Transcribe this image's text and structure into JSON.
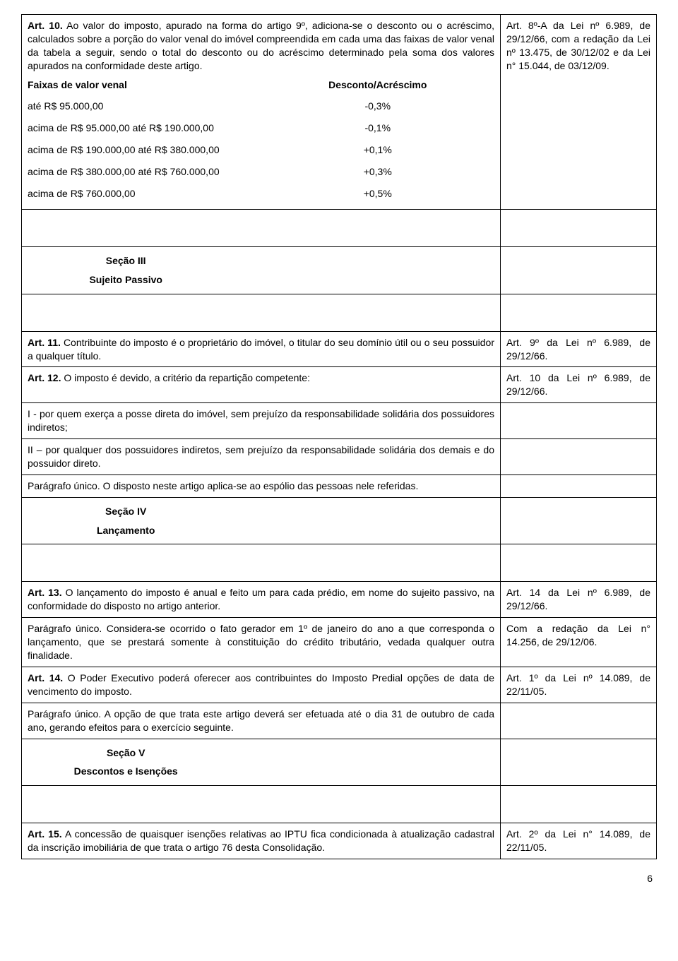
{
  "art10": {
    "head": "Art. 10.",
    "body": " Ao valor do imposto, apurado na forma do artigo 9º, adiciona-se o desconto ou o acréscimo, calculados sobre a porção do valor venal do imóvel compreendida em cada uma das faixas de valor venal da tabela a seguir, sendo o total do desconto ou do acréscimo determinado pela soma dos valores apurados na conformidade deste artigo.",
    "sideref": "Art. 8º-A da Lei nº 6.989, de 29/12/66, com a redação da Lei nº 13.475, de 30/12/02 e da Lei n° 15.044, de 03/12/09.",
    "faixa_head1": "Faixas de valor venal",
    "faixa_head2": "Desconto/Acréscimo",
    "rows": [
      {
        "a": "até R$ 95.000,00",
        "b": "-0,3%"
      },
      {
        "a": "acima de R$   95.000,00 até R$ 190.000,00",
        "b": "-0,1%"
      },
      {
        "a": "acima de R$ 190.000,00 até R$ 380.000,00",
        "b": "+0,1%"
      },
      {
        "a": "acima de R$ 380.000,00 até R$ 760.000,00",
        "b": "+0,3%"
      },
      {
        "a": "acima de R$ 760.000,00",
        "b": "+0,5%"
      }
    ]
  },
  "sec3": {
    "title1": "Seção III",
    "title2": "Sujeito Passivo"
  },
  "art11": {
    "head": "Art. 11.",
    "body": " Contribuinte do imposto é o proprietário do imóvel, o titular do seu domínio útil ou o seu possuidor a qualquer título.",
    "sideref": "Art. 9º da Lei nº 6.989, de 29/12/66."
  },
  "art12": {
    "head": "Art. 12.",
    "body": " O imposto é devido, a critério da repartição competente:",
    "i": "I - por quem exerça a posse direta do imóvel, sem prejuízo da responsabilidade solidária dos possuidores indiretos;",
    "ii": "II – por qualquer dos possuidores indiretos, sem prejuízo da responsabilidade solidária dos demais e do possuidor direto.",
    "pu": "Parágrafo único. O disposto neste artigo aplica-se ao espólio das pessoas nele referidas.",
    "sideref": "Art. 10 da Lei nº 6.989, de 29/12/66."
  },
  "sec4": {
    "title1": "Seção IV",
    "title2": "Lançamento"
  },
  "art13": {
    "head": "Art. 13.",
    "body": " O lançamento do imposto é anual e feito um para cada prédio, em nome do sujeito passivo, na conformidade do disposto no artigo anterior.",
    "pu": "Parágrafo único. Considera-se ocorrido o fato gerador em 1º de janeiro do ano a que corresponda o lançamento, que se prestará somente à constituição do crédito tributário, vedada qualquer outra finalidade.",
    "sideref": "Art. 14 da Lei nº 6.989, de 29/12/66.",
    "sideref2": "Com a redação da Lei n° 14.256, de 29/12/06."
  },
  "art14": {
    "head": "Art. 14.",
    "body": " O Poder Executivo poderá oferecer aos contribuintes do Imposto Predial opções de data de vencimento do imposto.",
    "pu": "Parágrafo único. A opção de que trata este artigo deverá ser efetuada até o dia 31 de outubro de cada ano, gerando efeitos para o exercício seguinte.",
    "sideref": "Art. 1º da Lei nº 14.089, de 22/11/05."
  },
  "sec5": {
    "title1": "Seção V",
    "title2": "Descontos e Isenções"
  },
  "art15": {
    "head": "Art. 15.",
    "body": " A concessão de quaisquer isenções relativas ao IPTU fica condicionada à atualização cadastral da inscrição imobiliária de que trata o artigo 76 desta Consolidação.",
    "sideref": "Art. 2º da Lei n° 14.089, de 22/11/05."
  },
  "page": "6"
}
